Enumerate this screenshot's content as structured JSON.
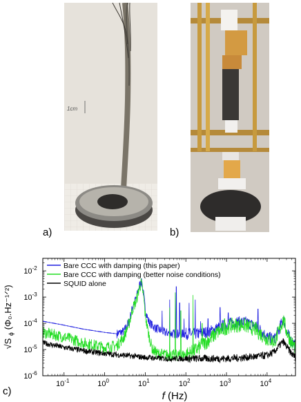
{
  "panels": {
    "a": {
      "label": "a)",
      "photo_annotation": "1cm"
    },
    "b": {
      "label": "b)"
    },
    "c": {
      "label": "c)"
    }
  },
  "chart_data": {
    "type": "line",
    "xscale": "log",
    "yscale": "log",
    "xlim": [
      0.03,
      50000
    ],
    "ylim": [
      1e-06,
      0.03
    ],
    "xlabel_symbol": "f",
    "xlabel_unit": "(Hz)",
    "ylabel_symbol": "√S",
    "ylabel_subscript": "ϕ",
    "ylabel_unit": "(Φ₀.Hz⁻¹ᐟ²)",
    "x_ticks": [
      {
        "value": 0.1,
        "base": "10",
        "exp": "-1"
      },
      {
        "value": 1,
        "base": "10",
        "exp": "0"
      },
      {
        "value": 10,
        "base": "10",
        "exp": "1"
      },
      {
        "value": 100,
        "base": "10",
        "exp": "2"
      },
      {
        "value": 1000,
        "base": "10",
        "exp": "3"
      },
      {
        "value": 10000,
        "base": "10",
        "exp": "4"
      }
    ],
    "y_ticks": [
      {
        "value": 1e-06,
        "base": "10",
        "exp": "-6"
      },
      {
        "value": 1e-05,
        "base": "10",
        "exp": "-5"
      },
      {
        "value": 0.0001,
        "base": "10",
        "exp": "-4"
      },
      {
        "value": 0.001,
        "base": "10",
        "exp": "-3"
      },
      {
        "value": 0.01,
        "base": "10",
        "exp": "-2"
      }
    ],
    "legend_position": "top-left",
    "series": [
      {
        "name": "Bare CCC with damping (this paper)",
        "color": "#1f1fe0",
        "points": [
          [
            0.03,
            0.00012
          ],
          [
            0.1,
            8.5e-05
          ],
          [
            0.3,
            6e-05
          ],
          [
            1,
            4.5e-05
          ],
          [
            2,
            4e-05
          ],
          [
            3,
            5e-05
          ],
          [
            4,
            0.00012
          ],
          [
            5,
            0.0005
          ],
          [
            6,
            0.0009
          ],
          [
            7,
            0.0025
          ],
          [
            8,
            0.004
          ],
          [
            9,
            0.0015
          ],
          [
            10,
            0.00035
          ],
          [
            12,
            0.00012
          ],
          [
            15,
            8e-05
          ],
          [
            20,
            6e-05
          ],
          [
            30,
            4.5e-05
          ],
          [
            50,
            4e-05
          ],
          [
            100,
            4e-05
          ],
          [
            200,
            4e-05
          ],
          [
            400,
            5e-05
          ],
          [
            800,
            8e-05
          ],
          [
            1500,
            0.00011
          ],
          [
            3000,
            0.00011
          ],
          [
            6000,
            7e-05
          ],
          [
            10000,
            3e-05
          ],
          [
            15000,
            2.5e-05
          ],
          [
            20000,
            6e-05
          ],
          [
            25000,
            0.00016
          ],
          [
            30000,
            5e-05
          ],
          [
            40000,
            2e-05
          ],
          [
            50000,
            1.5e-05
          ]
        ]
      },
      {
        "name": "Bare CCC with damping (better noise conditions)",
        "color": "#22dd22",
        "points": [
          [
            0.03,
            4.5e-05
          ],
          [
            0.1,
            3e-05
          ],
          [
            0.3,
            1.8e-05
          ],
          [
            1,
            1.2e-05
          ],
          [
            2,
            1.4e-05
          ],
          [
            3,
            3e-05
          ],
          [
            4,
            0.0001
          ],
          [
            5,
            0.0004
          ],
          [
            6,
            0.0007
          ],
          [
            7,
            0.002
          ],
          [
            8,
            0.0035
          ],
          [
            9,
            0.0012
          ],
          [
            10,
            0.0002
          ],
          [
            12,
            4e-05
          ],
          [
            15,
            1e-05
          ],
          [
            20,
            7e-06
          ],
          [
            40,
            6e-06
          ],
          [
            80,
            6e-06
          ],
          [
            150,
            8e-06
          ],
          [
            300,
            1.8e-05
          ],
          [
            600,
            4.5e-05
          ],
          [
            1200,
            8e-05
          ],
          [
            2500,
            9e-05
          ],
          [
            5000,
            6e-05
          ],
          [
            10000,
            2.5e-05
          ],
          [
            15000,
            2e-05
          ],
          [
            20000,
            5e-05
          ],
          [
            25000,
            0.00014
          ],
          [
            30000,
            5e-05
          ],
          [
            40000,
            1.8e-05
          ],
          [
            50000,
            1.2e-05
          ]
        ]
      },
      {
        "name": "SQUID alone",
        "color": "#000000",
        "points": [
          [
            0.03,
            1.8e-05
          ],
          [
            0.1,
            1.2e-05
          ],
          [
            0.3,
            9e-06
          ],
          [
            1,
            7e-06
          ],
          [
            3,
            6e-06
          ],
          [
            10,
            5e-06
          ],
          [
            30,
            4.5e-06
          ],
          [
            100,
            4.5e-06
          ],
          [
            300,
            4.5e-06
          ],
          [
            1000,
            4.5e-06
          ],
          [
            3000,
            5e-06
          ],
          [
            6000,
            5.5e-06
          ],
          [
            10000,
            6e-06
          ],
          [
            15000,
            8e-06
          ],
          [
            20000,
            1.4e-05
          ],
          [
            25000,
            2e-05
          ],
          [
            30000,
            1.3e-05
          ],
          [
            40000,
            7e-06
          ],
          [
            50000,
            5e-06
          ]
        ]
      }
    ],
    "peaks": {
      "this_paper": [
        [
          26,
          0.0003
        ],
        [
          40,
          0.0008
        ],
        [
          58,
          0.0025
        ],
        [
          70,
          0.0006
        ],
        [
          90,
          0.00015
        ],
        [
          120,
          0.0006
        ],
        [
          170,
          0.0008
        ],
        [
          230,
          0.00012
        ],
        [
          350,
          0.00015
        ],
        [
          700,
          0.0004
        ],
        [
          1100,
          0.00025
        ],
        [
          6000,
          0.00035
        ]
      ],
      "better": [
        [
          40,
          0.0004
        ],
        [
          55,
          0.0015
        ],
        [
          75,
          0.0003
        ],
        [
          150,
          0.0012
        ],
        [
          250,
          0.0001
        ],
        [
          900,
          0.00015
        ]
      ]
    }
  }
}
